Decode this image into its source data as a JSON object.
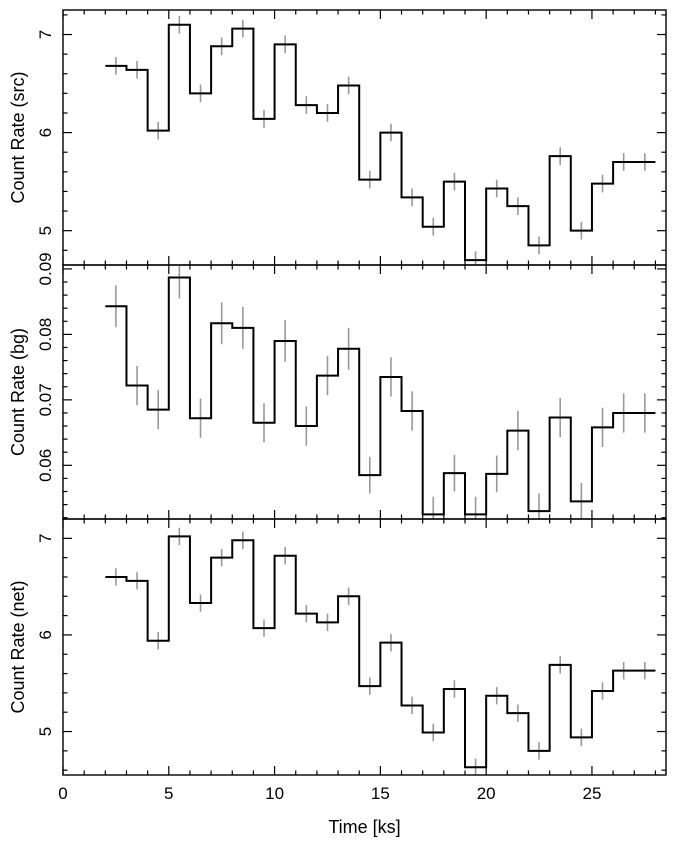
{
  "chart_data": {
    "type": "line",
    "style": "step",
    "xlabel": "Time [ks]",
    "xlim": [
      0,
      28.5
    ],
    "xticks": [
      0,
      5,
      10,
      15,
      20,
      25
    ],
    "bin_edges": [
      2.0,
      3.0,
      4.0,
      5.0,
      6.0,
      7.0,
      8.0,
      9.0,
      10.0,
      11.0,
      12.0,
      13.0,
      14.0,
      15.0,
      16.0,
      17.0,
      18.0,
      19.0,
      20.0,
      21.0,
      22.0,
      23.0,
      24.0,
      25.0,
      26.0,
      27.0,
      28.0
    ],
    "bin_centers": [
      2.5,
      3.5,
      4.5,
      5.5,
      6.5,
      7.5,
      8.5,
      9.5,
      10.5,
      11.5,
      12.5,
      13.5,
      14.5,
      15.5,
      16.5,
      17.5,
      18.5,
      19.5,
      20.5,
      21.5,
      22.5,
      23.5,
      24.5,
      25.5,
      26.5,
      27.5
    ],
    "colors": {
      "step": "#000000",
      "errorbar": "#999999",
      "frame": "#000000"
    },
    "panels": [
      {
        "ylabel": "Count Rate (src)",
        "ylim": [
          4.65,
          7.25
        ],
        "yticks": [
          5,
          6,
          7
        ],
        "values": [
          6.68,
          6.64,
          6.02,
          7.1,
          6.4,
          6.88,
          7.06,
          6.14,
          6.9,
          6.28,
          6.2,
          6.48,
          5.52,
          6.0,
          5.34,
          5.04,
          5.5,
          4.7,
          5.43,
          5.25,
          4.85,
          5.76,
          5.0,
          5.48,
          5.7,
          5.7
        ],
        "errors": [
          0.09,
          0.09,
          0.09,
          0.09,
          0.09,
          0.09,
          0.09,
          0.09,
          0.09,
          0.09,
          0.09,
          0.09,
          0.09,
          0.09,
          0.09,
          0.09,
          0.09,
          0.09,
          0.09,
          0.09,
          0.09,
          0.09,
          0.09,
          0.09,
          0.09,
          0.09
        ]
      },
      {
        "ylabel": "Count Rate (bg)",
        "ylim": [
          0.0518,
          0.0906
        ],
        "yticks": [
          0.06,
          0.07,
          0.08,
          0.09
        ],
        "values": [
          0.0843,
          0.0722,
          0.0685,
          0.0887,
          0.0672,
          0.0817,
          0.081,
          0.0665,
          0.079,
          0.066,
          0.0737,
          0.0778,
          0.0585,
          0.0735,
          0.0683,
          0.0525,
          0.0588,
          0.0525,
          0.0587,
          0.0653,
          0.053,
          0.0673,
          0.0545,
          0.0658,
          0.068,
          0.068
        ],
        "errors": [
          0.0032,
          0.003,
          0.003,
          0.0032,
          0.003,
          0.0032,
          0.0032,
          0.003,
          0.0032,
          0.003,
          0.003,
          0.0032,
          0.0028,
          0.003,
          0.003,
          0.0027,
          0.0028,
          0.0027,
          0.0028,
          0.003,
          0.0027,
          0.003,
          0.0028,
          0.003,
          0.003,
          0.003
        ]
      },
      {
        "ylabel": "Count Rate (net)",
        "ylim": [
          4.55,
          7.2
        ],
        "yticks": [
          5,
          6,
          7
        ],
        "values": [
          6.6,
          6.56,
          5.94,
          7.02,
          6.33,
          6.8,
          6.98,
          6.07,
          6.82,
          6.22,
          6.13,
          6.4,
          5.47,
          5.92,
          5.27,
          4.99,
          5.44,
          4.63,
          5.37,
          5.19,
          4.8,
          5.69,
          4.94,
          5.42,
          5.63,
          5.63
        ],
        "errors": [
          0.09,
          0.09,
          0.09,
          0.09,
          0.09,
          0.09,
          0.09,
          0.09,
          0.09,
          0.09,
          0.09,
          0.09,
          0.09,
          0.09,
          0.09,
          0.09,
          0.09,
          0.09,
          0.09,
          0.09,
          0.09,
          0.09,
          0.09,
          0.09,
          0.09,
          0.09
        ]
      }
    ]
  }
}
